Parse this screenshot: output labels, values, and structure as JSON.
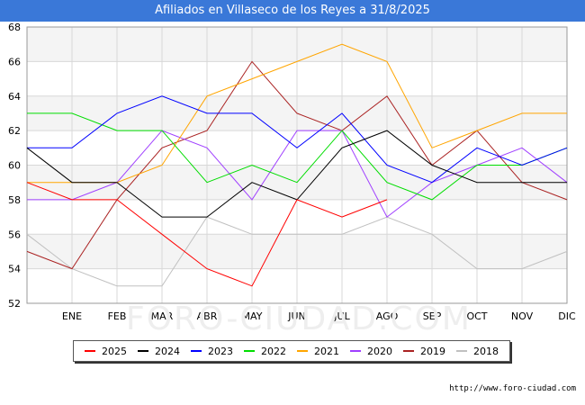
{
  "chart_data": {
    "type": "line",
    "title": "Afiliados en Villaseco de los Reyes a 31/8/2025",
    "categories": [
      "",
      "ENE",
      "FEB",
      "MAR",
      "ABR",
      "MAY",
      "JUN",
      "JUL",
      "AGO",
      "SEP",
      "OCT",
      "NOV",
      "DIC"
    ],
    "ylim": [
      52,
      68
    ],
    "yticks": [
      52,
      54,
      56,
      58,
      60,
      62,
      64,
      66,
      68
    ],
    "xlabel": "",
    "ylabel": "",
    "grid": true,
    "series": [
      {
        "name": "2025",
        "color": "#ff0000",
        "values": [
          59,
          58,
          58,
          56,
          54,
          53,
          58,
          57,
          58,
          null,
          null,
          null,
          null
        ]
      },
      {
        "name": "2024",
        "color": "#000000",
        "values": [
          61,
          59,
          59,
          57,
          57,
          59,
          58,
          61,
          62,
          60,
          59,
          59,
          59
        ]
      },
      {
        "name": "2023",
        "color": "#0000ff",
        "values": [
          61,
          61,
          63,
          64,
          63,
          63,
          61,
          63,
          60,
          59,
          61,
          60,
          61
        ]
      },
      {
        "name": "2022",
        "color": "#00dd00",
        "values": [
          63,
          63,
          62,
          62,
          59,
          60,
          59,
          62,
          59,
          58,
          60,
          60,
          61
        ]
      },
      {
        "name": "2021",
        "color": "#ffa500",
        "values": [
          59,
          59,
          59,
          60,
          64,
          65,
          66,
          67,
          66,
          61,
          62,
          63,
          63
        ]
      },
      {
        "name": "2020",
        "color": "#a040ff",
        "values": [
          58,
          58,
          59,
          62,
          61,
          58,
          62,
          62,
          57,
          59,
          60,
          61,
          59
        ]
      },
      {
        "name": "2019",
        "color": "#aa2222",
        "values": [
          55,
          54,
          58,
          61,
          62,
          66,
          63,
          62,
          64,
          60,
          62,
          59,
          58
        ]
      },
      {
        "name": "2018",
        "color": "#c0c0c0",
        "values": [
          56,
          54,
          53,
          53,
          57,
          56,
          56,
          56,
          57,
          56,
          54,
          54,
          55
        ]
      }
    ],
    "watermark": "FORO-CIUDAD.COM",
    "source": "http://www.foro-ciudad.com"
  }
}
